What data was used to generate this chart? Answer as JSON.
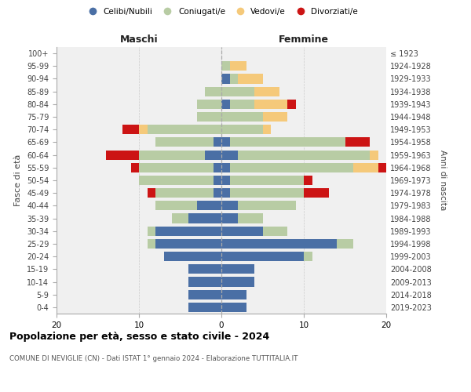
{
  "age_groups": [
    "0-4",
    "5-9",
    "10-14",
    "15-19",
    "20-24",
    "25-29",
    "30-34",
    "35-39",
    "40-44",
    "45-49",
    "50-54",
    "55-59",
    "60-64",
    "65-69",
    "70-74",
    "75-79",
    "80-84",
    "85-89",
    "90-94",
    "95-99",
    "100+"
  ],
  "birth_years": [
    "2019-2023",
    "2014-2018",
    "2009-2013",
    "2004-2008",
    "1999-2003",
    "1994-1998",
    "1989-1993",
    "1984-1988",
    "1979-1983",
    "1974-1978",
    "1969-1973",
    "1964-1968",
    "1959-1963",
    "1954-1958",
    "1949-1953",
    "1944-1948",
    "1939-1943",
    "1934-1938",
    "1929-1933",
    "1924-1928",
    "≤ 1923"
  ],
  "colors": {
    "celibi": "#4a6fa5",
    "coniugati": "#b8cca4",
    "vedovi": "#f5c97a",
    "divorziati": "#cc1414"
  },
  "maschi": {
    "celibi": [
      4,
      4,
      4,
      4,
      7,
      8,
      8,
      4,
      3,
      1,
      1,
      1,
      2,
      1,
      0,
      0,
      0,
      0,
      0,
      0,
      0
    ],
    "coniugati": [
      0,
      0,
      0,
      0,
      0,
      1,
      1,
      2,
      5,
      7,
      9,
      9,
      8,
      7,
      9,
      3,
      3,
      2,
      0,
      0,
      0
    ],
    "vedovi": [
      0,
      0,
      0,
      0,
      0,
      0,
      0,
      0,
      0,
      0,
      0,
      0,
      0,
      0,
      1,
      0,
      0,
      0,
      0,
      0,
      0
    ],
    "divorziati": [
      0,
      0,
      0,
      0,
      0,
      0,
      0,
      0,
      0,
      1,
      0,
      1,
      4,
      0,
      2,
      0,
      0,
      0,
      0,
      0,
      0
    ]
  },
  "femmine": {
    "celibi": [
      3,
      3,
      4,
      4,
      10,
      14,
      5,
      2,
      2,
      1,
      1,
      1,
      2,
      1,
      0,
      0,
      1,
      0,
      1,
      0,
      0
    ],
    "coniugati": [
      0,
      0,
      0,
      0,
      1,
      2,
      3,
      3,
      7,
      9,
      9,
      15,
      16,
      14,
      5,
      5,
      3,
      4,
      1,
      1,
      0
    ],
    "vedovi": [
      0,
      0,
      0,
      0,
      0,
      0,
      0,
      0,
      0,
      0,
      0,
      3,
      1,
      0,
      1,
      3,
      4,
      3,
      3,
      2,
      0
    ],
    "divorziati": [
      0,
      0,
      0,
      0,
      0,
      0,
      0,
      0,
      0,
      3,
      1,
      2,
      0,
      3,
      0,
      0,
      1,
      0,
      0,
      0,
      0
    ]
  },
  "xlabel_left": "Maschi",
  "xlabel_right": "Femmine",
  "ylabel_left": "Fasce di età",
  "ylabel_right": "Anni di nascita",
  "title": "Popolazione per età, sesso e stato civile - 2024",
  "subtitle": "COMUNE DI NEVIGLIE (CN) - Dati ISTAT 1° gennaio 2024 - Elaborazione TUTTITALIA.IT",
  "legend_labels": [
    "Celibi/Nubili",
    "Coniugati/e",
    "Vedovi/e",
    "Divorziati/e"
  ],
  "xlim": 20,
  "background_color": "#f0f0f0"
}
